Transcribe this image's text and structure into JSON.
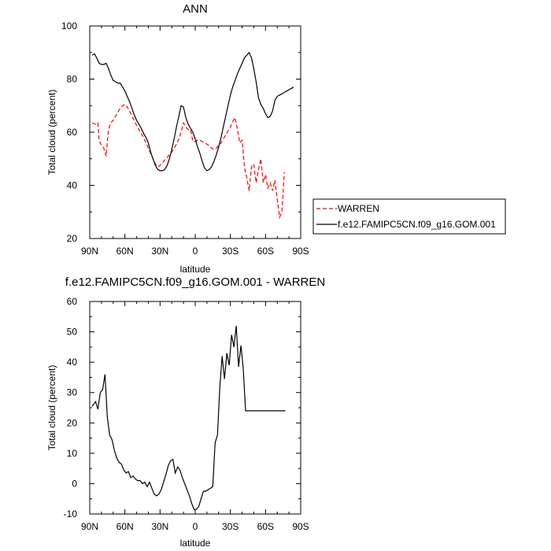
{
  "chart_data": [
    {
      "type": "line",
      "title": "ANN",
      "xlabel": "latitude",
      "ylabel": "Total cloud (percent)",
      "xlim": [
        90,
        -90
      ],
      "ylim": [
        20,
        100
      ],
      "x_ticks": [
        "90N",
        "60N",
        "30N",
        "0",
        "30S",
        "60S",
        "90S"
      ],
      "y_ticks": [
        "20",
        "40",
        "60",
        "80",
        "100"
      ],
      "legend_position": "right",
      "series": [
        {
          "name": "WARREN",
          "color": "#ff0000",
          "dash": true,
          "x": [
            88,
            85,
            83,
            82,
            80,
            78,
            76,
            74,
            72,
            70,
            68,
            66,
            64,
            62,
            60,
            58,
            56,
            54,
            52,
            50,
            48,
            46,
            44,
            42,
            40,
            38,
            36,
            34,
            32,
            30,
            28,
            26,
            24,
            22,
            20,
            18,
            16,
            14,
            12,
            10,
            8,
            6,
            4,
            2,
            0,
            -2,
            -4,
            -6,
            -8,
            -10,
            -12,
            -14,
            -16,
            -18,
            -20,
            -22,
            -24,
            -26,
            -28,
            -30,
            -32,
            -34,
            -36,
            -38,
            -40,
            -42,
            -44,
            -46,
            -48,
            -50,
            -52,
            -54,
            -56,
            -58,
            -60,
            -62,
            -64,
            -66,
            -68,
            -70,
            -72,
            -74,
            -76
          ],
          "y": [
            63.5,
            63,
            63.5,
            57,
            55,
            54,
            51,
            61,
            63.5,
            64.5,
            66,
            67.5,
            69,
            70,
            70.5,
            69.5,
            68,
            66,
            64.5,
            62.5,
            61,
            59.5,
            58,
            56,
            54,
            52,
            50,
            48,
            47,
            47.5,
            48.5,
            49.5,
            50.5,
            51.5,
            52.5,
            54,
            55.5,
            57.5,
            60,
            63.5,
            62,
            61,
            61,
            56.5,
            56.5,
            57,
            57,
            56.5,
            56,
            55.5,
            55,
            54,
            53.5,
            54,
            55,
            56,
            57.5,
            59,
            60.5,
            62,
            64,
            65.5,
            61,
            56,
            57,
            47,
            43,
            38,
            47,
            48,
            41,
            46,
            50,
            41,
            44,
            39,
            41,
            38,
            42,
            35,
            28,
            30,
            45
          ]
        },
        {
          "name": "f.e12.FAMIPC5CN.f09_g16.GOM.001",
          "color": "#000000",
          "dash": false,
          "x": [
            88,
            86,
            84,
            82,
            80,
            78,
            76,
            74,
            72,
            70,
            68,
            66,
            64,
            62,
            60,
            58,
            56,
            54,
            52,
            50,
            48,
            46,
            44,
            42,
            40,
            38,
            36,
            34,
            32,
            30,
            28,
            26,
            24,
            22,
            20,
            18,
            16,
            14,
            12,
            10,
            8,
            6,
            4,
            2,
            0,
            -2,
            -4,
            -6,
            -8,
            -10,
            -12,
            -14,
            -16,
            -18,
            -20,
            -22,
            -24,
            -26,
            -28,
            -30,
            -32,
            -34,
            -36,
            -38,
            -40,
            -42,
            -44,
            -46,
            -48,
            -50,
            -52,
            -54,
            -56,
            -58,
            -60,
            -62,
            -64,
            -66,
            -68,
            -70,
            -72,
            -74,
            -76,
            -78,
            -80,
            -82,
            -84
          ],
          "y": [
            89,
            89.5,
            88,
            86,
            85.5,
            85.5,
            86,
            84,
            81.5,
            79.5,
            79,
            78.5,
            78.5,
            77,
            75.5,
            73.5,
            71.5,
            69,
            66.5,
            64.5,
            63,
            61.5,
            59.5,
            58,
            56,
            52.5,
            50,
            47.5,
            46,
            45.5,
            45.5,
            46,
            47.5,
            50,
            53.5,
            57.5,
            62,
            66,
            70,
            69.5,
            65.5,
            63,
            61.5,
            60,
            57.5,
            54.5,
            52,
            49,
            46.5,
            45.5,
            46,
            47,
            49,
            51.5,
            54.5,
            58,
            62,
            66,
            70,
            74,
            77,
            79.5,
            82,
            84,
            86,
            88,
            89,
            90,
            88,
            84,
            79,
            73,
            70.5,
            69,
            67,
            65.5,
            66,
            68,
            72,
            73.5,
            74,
            74.5,
            75,
            75.5,
            76,
            76.5,
            77
          ]
        }
      ]
    },
    {
      "type": "line",
      "title": "f.e12.FAMIPC5CN.f09_g16.GOM.001 - WARREN",
      "xlabel": "latitude",
      "ylabel": "Total cloud (percent)",
      "xlim": [
        90,
        -90
      ],
      "ylim": [
        -10,
        60
      ],
      "x_ticks": [
        "90N",
        "60N",
        "30N",
        "0",
        "30S",
        "60S",
        "90S"
      ],
      "y_ticks": [
        "-10",
        "0",
        "10",
        "20",
        "30",
        "40",
        "50",
        "60"
      ],
      "series": [
        {
          "color": "#000000",
          "dash": false,
          "x": [
            88,
            85,
            83,
            81,
            79,
            77,
            75,
            73,
            71,
            69,
            67,
            65,
            63,
            61,
            59,
            57,
            55,
            53,
            51,
            49,
            47,
            45,
            43,
            41,
            39,
            37,
            35,
            33,
            31,
            29,
            27,
            25,
            23,
            21,
            19,
            17,
            15,
            13,
            11,
            9,
            7,
            5,
            3,
            1,
            -1,
            -3,
            -5,
            -7,
            -9,
            -11,
            -13,
            -15,
            -17,
            -19,
            -21,
            -23,
            -25,
            -27,
            -29,
            -31,
            -33,
            -35,
            -37,
            -39,
            -41,
            -43,
            -45,
            -47,
            -49,
            -51,
            -53,
            -55,
            -57,
            -59,
            -61,
            -63,
            -65,
            -67,
            -69,
            -71,
            -73,
            -75,
            -77
          ],
          "y": [
            25.5,
            27,
            24.5,
            30,
            31,
            36,
            22,
            16,
            14.5,
            11,
            8.5,
            7,
            6.5,
            4.5,
            3.5,
            4,
            2,
            2.5,
            1.5,
            1,
            1,
            0,
            0.5,
            -1,
            0.5,
            -1.5,
            -3.5,
            -4,
            -3.5,
            -2,
            0.5,
            3,
            6,
            7.5,
            8,
            3.5,
            5.5,
            4.5,
            2,
            0,
            -2,
            -4,
            -6.5,
            -8.5,
            -8.5,
            -7.5,
            -5,
            -2.5,
            -2.5,
            -2,
            -1.5,
            -1,
            13.5,
            16,
            32,
            42,
            34.5,
            43,
            39,
            49,
            45,
            52,
            38.5,
            45.5,
            38,
            24,
            24,
            24,
            24,
            24,
            24,
            24,
            24,
            24,
            24,
            24,
            24,
            24,
            24,
            24,
            24,
            24,
            24
          ]
        }
      ]
    }
  ]
}
